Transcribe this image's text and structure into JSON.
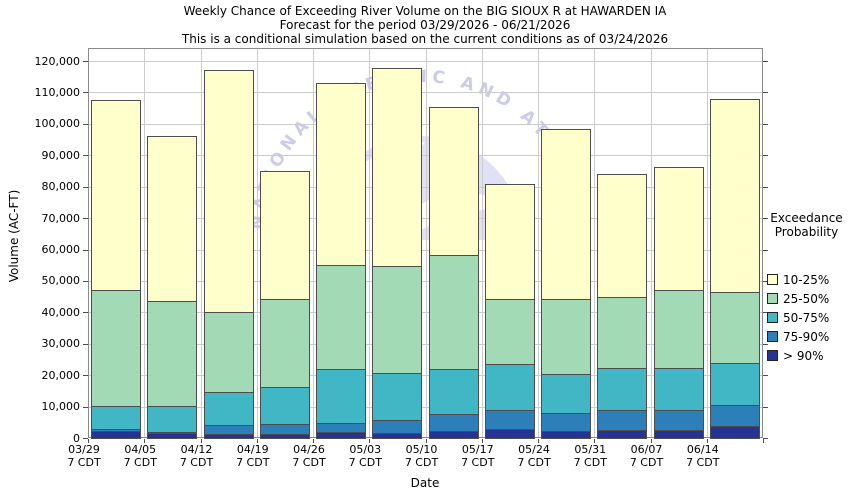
{
  "title": {
    "line1": "Weekly Chance of Exceeding River Volume on the BIG SIOUX R at HAWARDEN IA",
    "line2": "Forecast for the period 03/29/2026 - 06/21/2026",
    "line3": "This is a conditional simulation based on the current conditions as of 03/24/2026"
  },
  "y_axis": {
    "label": "Volume (AC-FT)",
    "min": 0,
    "max": 120000,
    "step": 10000
  },
  "x_axis": {
    "label": "Date",
    "time_label": "7 CDT"
  },
  "legend": {
    "title_line1": "Exceedance",
    "title_line2": "Probability",
    "items": [
      {
        "label": "10-25%",
        "color": "#ffffcc"
      },
      {
        "label": "25-50%",
        "color": "#a1dab4"
      },
      {
        "label": "50-75%",
        "color": "#41b6c4"
      },
      {
        "label": "75-90%",
        "color": "#2c7fb8"
      },
      {
        "label": "> 90%",
        "color": "#253494"
      }
    ]
  },
  "watermark": {
    "ring_text": "NATIONAL OCEANIC AND ATMOSPHERIC ADMINISTRATION",
    "color": "#c3c3e8"
  },
  "chart_data": {
    "type": "bar",
    "subtype": "stacked-exceedance",
    "categories": [
      "03/29",
      "04/05",
      "04/12",
      "04/19",
      "04/26",
      "05/03",
      "05/10",
      "05/17",
      "05/24",
      "05/31",
      "06/07",
      "06/14"
    ],
    "tick_sub_label": "7 CDT",
    "ylabel": "Volume (AC-FT)",
    "xlabel": "Date",
    "ylim": [
      0,
      120000
    ],
    "grid": true,
    "legend_position": "right",
    "series": [
      {
        "name": "> 90%",
        "color": "#253494",
        "cumulative_top": [
          2200,
          1500,
          1400,
          1400,
          1900,
          1600,
          2200,
          3000,
          2300,
          2400,
          2700,
          3800
        ]
      },
      {
        "name": "75-90%",
        "color": "#2c7fb8",
        "cumulative_top": [
          2900,
          1900,
          4000,
          4300,
          4800,
          5700,
          7500,
          8800,
          7900,
          9000,
          8900,
          10600
        ]
      },
      {
        "name": "50-75%",
        "color": "#41b6c4",
        "cumulative_top": [
          10300,
          10200,
          14800,
          16200,
          22000,
          20600,
          22100,
          23700,
          20300,
          22400,
          22200,
          24000
        ]
      },
      {
        "name": "25-50%",
        "color": "#a1dab4",
        "cumulative_top": [
          47100,
          43500,
          40000,
          44200,
          55100,
          54700,
          58100,
          44300,
          44300,
          45000,
          47000,
          46500
        ]
      },
      {
        "name": "10-25%",
        "color": "#ffffcc",
        "cumulative_top": [
          107500,
          96000,
          117200,
          84900,
          113000,
          117800,
          105300,
          81000,
          98400,
          84000,
          86200,
          108000
        ]
      }
    ]
  }
}
